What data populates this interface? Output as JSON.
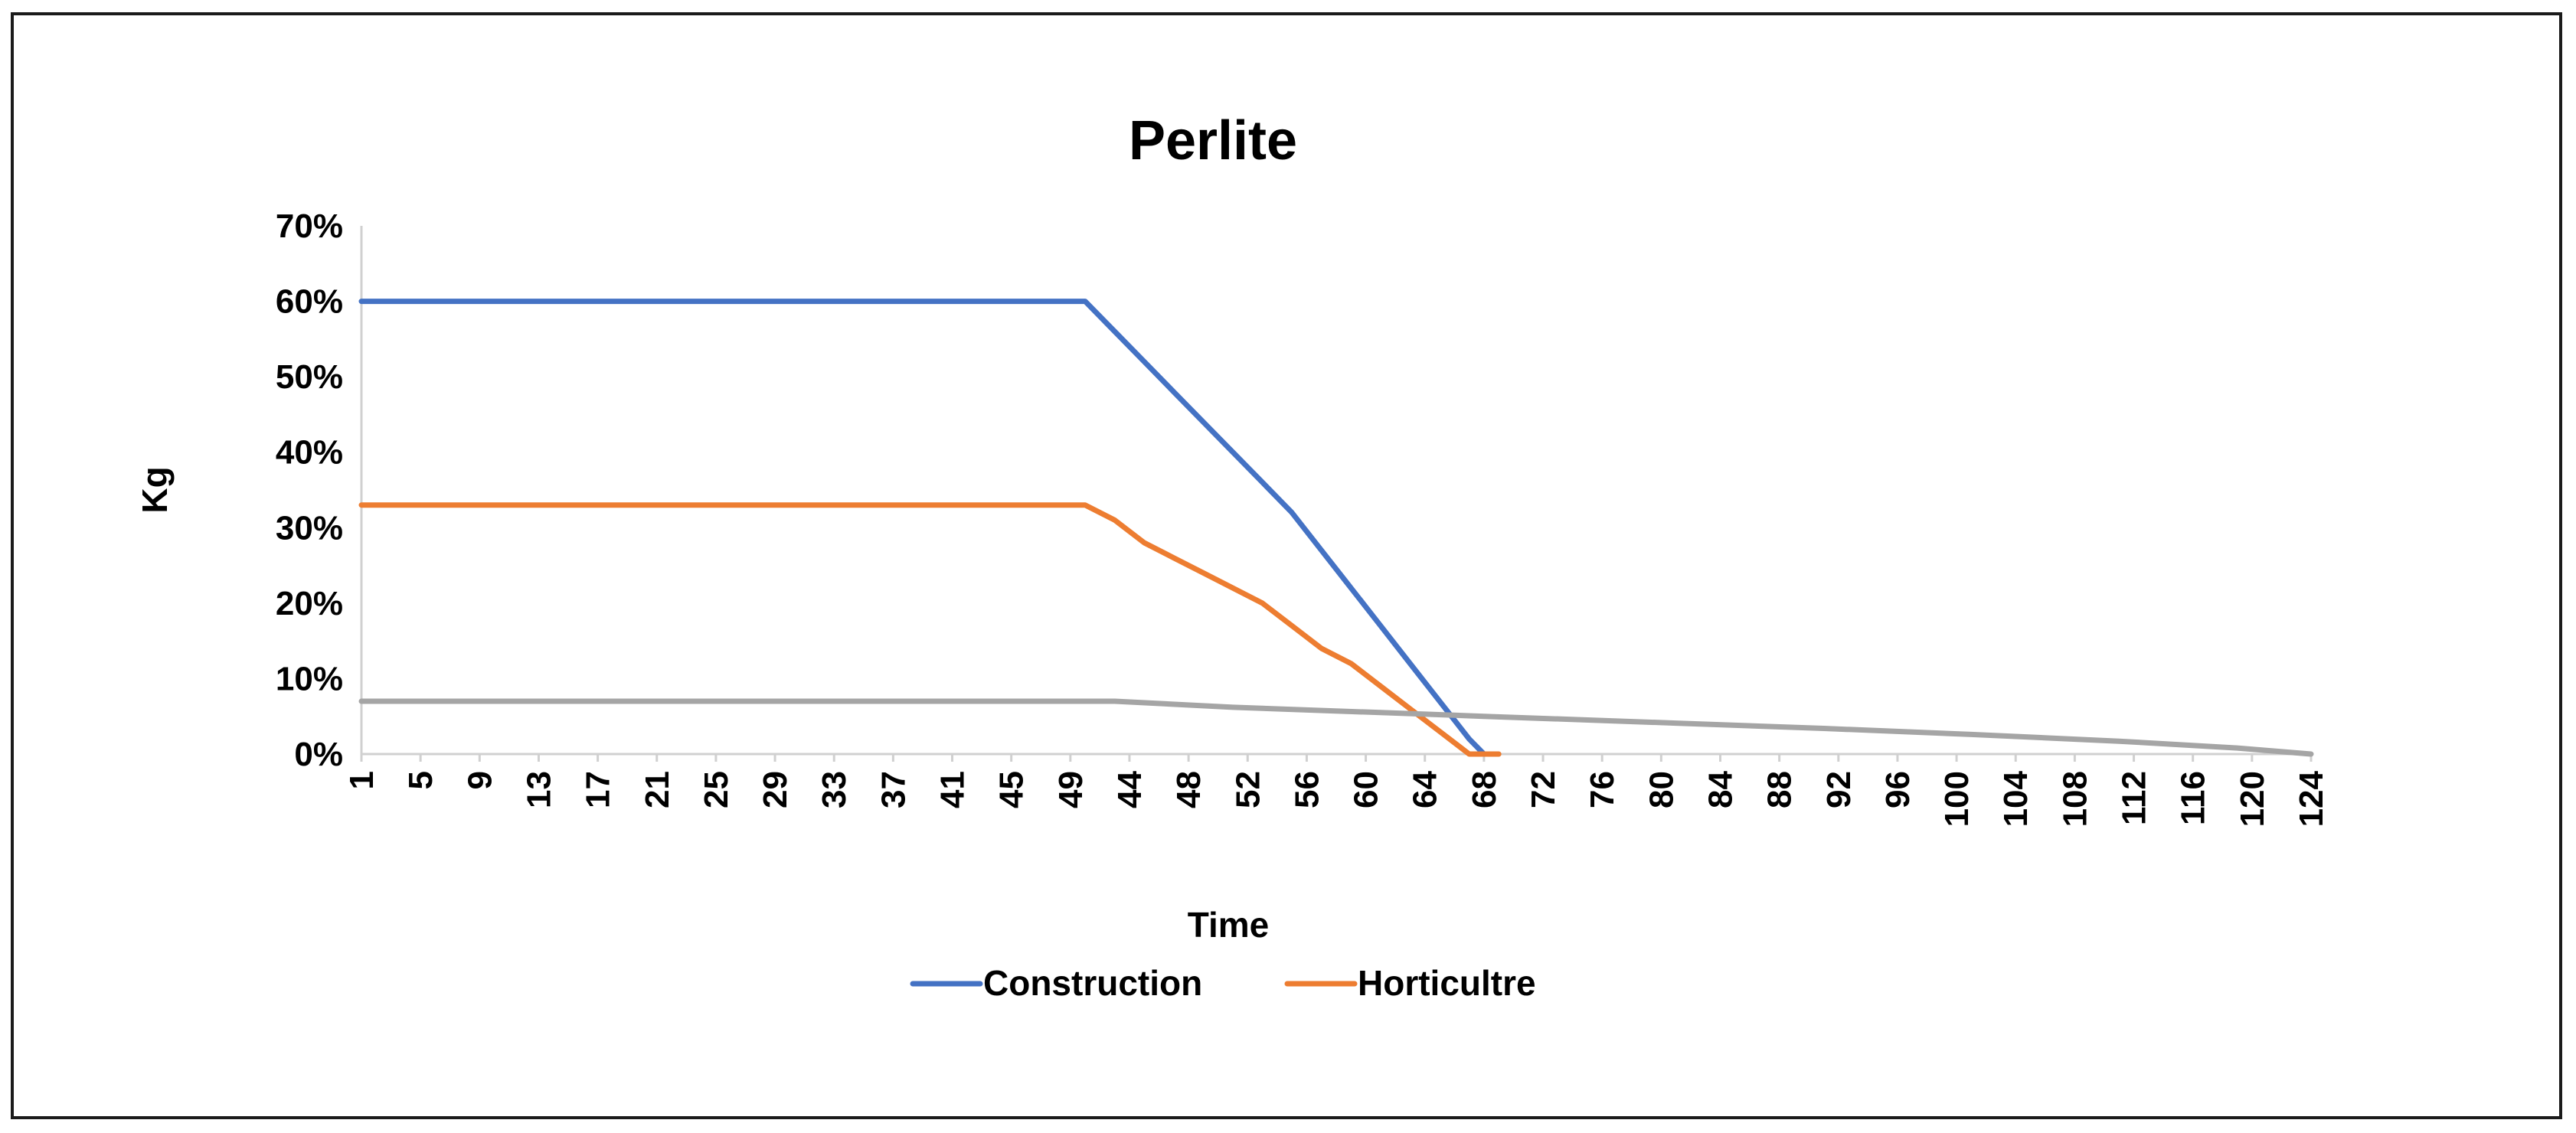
{
  "chart_data": {
    "type": "line",
    "title": "Perlite",
    "xlabel": "Time",
    "ylabel": "Kg",
    "ylim": [
      0,
      0.7
    ],
    "y_ticks": [
      "0%",
      "10%",
      "20%",
      "30%",
      "40%",
      "50%",
      "60%",
      "70%"
    ],
    "x_tick_labels": [
      "1",
      "5",
      "9",
      "13",
      "17",
      "21",
      "25",
      "29",
      "33",
      "37",
      "41",
      "45",
      "49",
      "44",
      "48",
      "52",
      "56",
      "60",
      "64",
      "68",
      "72",
      "76",
      "80",
      "84",
      "88",
      "92",
      "96",
      "100",
      "104",
      "108",
      "112",
      "116",
      "120",
      "124"
    ],
    "x_range": [
      1,
      133
    ],
    "grid": false,
    "legend_position": "bottom",
    "series": [
      {
        "name": "Construction",
        "color": "#4472C4",
        "in_legend": true,
        "points": [
          [
            1,
            0.6
          ],
          [
            50,
            0.6
          ],
          [
            52,
            0.56
          ],
          [
            54,
            0.52
          ],
          [
            56,
            0.48
          ],
          [
            58,
            0.44
          ],
          [
            60,
            0.4
          ],
          [
            62,
            0.36
          ],
          [
            64,
            0.32
          ],
          [
            66,
            0.27
          ],
          [
            68,
            0.22
          ],
          [
            70,
            0.17
          ],
          [
            72,
            0.12
          ],
          [
            74,
            0.07
          ],
          [
            76,
            0.02
          ],
          [
            77,
            0.0
          ]
        ]
      },
      {
        "name": "Horticultre",
        "color": "#ED7D31",
        "in_legend": true,
        "points": [
          [
            1,
            0.33
          ],
          [
            50,
            0.33
          ],
          [
            52,
            0.31
          ],
          [
            54,
            0.28
          ],
          [
            56,
            0.26
          ],
          [
            58,
            0.24
          ],
          [
            60,
            0.22
          ],
          [
            62,
            0.2
          ],
          [
            64,
            0.17
          ],
          [
            66,
            0.14
          ],
          [
            68,
            0.12
          ],
          [
            70,
            0.09
          ],
          [
            72,
            0.06
          ],
          [
            74,
            0.03
          ],
          [
            76,
            0.0
          ],
          [
            78,
            0.0
          ]
        ]
      },
      {
        "name": "",
        "color": "#A5A5A5",
        "in_legend": false,
        "points": [
          [
            1,
            0.07
          ],
          [
            52,
            0.07
          ],
          [
            60,
            0.062
          ],
          [
            70,
            0.055
          ],
          [
            77,
            0.05
          ],
          [
            90,
            0.041
          ],
          [
            100,
            0.034
          ],
          [
            110,
            0.026
          ],
          [
            120,
            0.017
          ],
          [
            128,
            0.008
          ],
          [
            133,
            0.0
          ]
        ]
      }
    ]
  }
}
